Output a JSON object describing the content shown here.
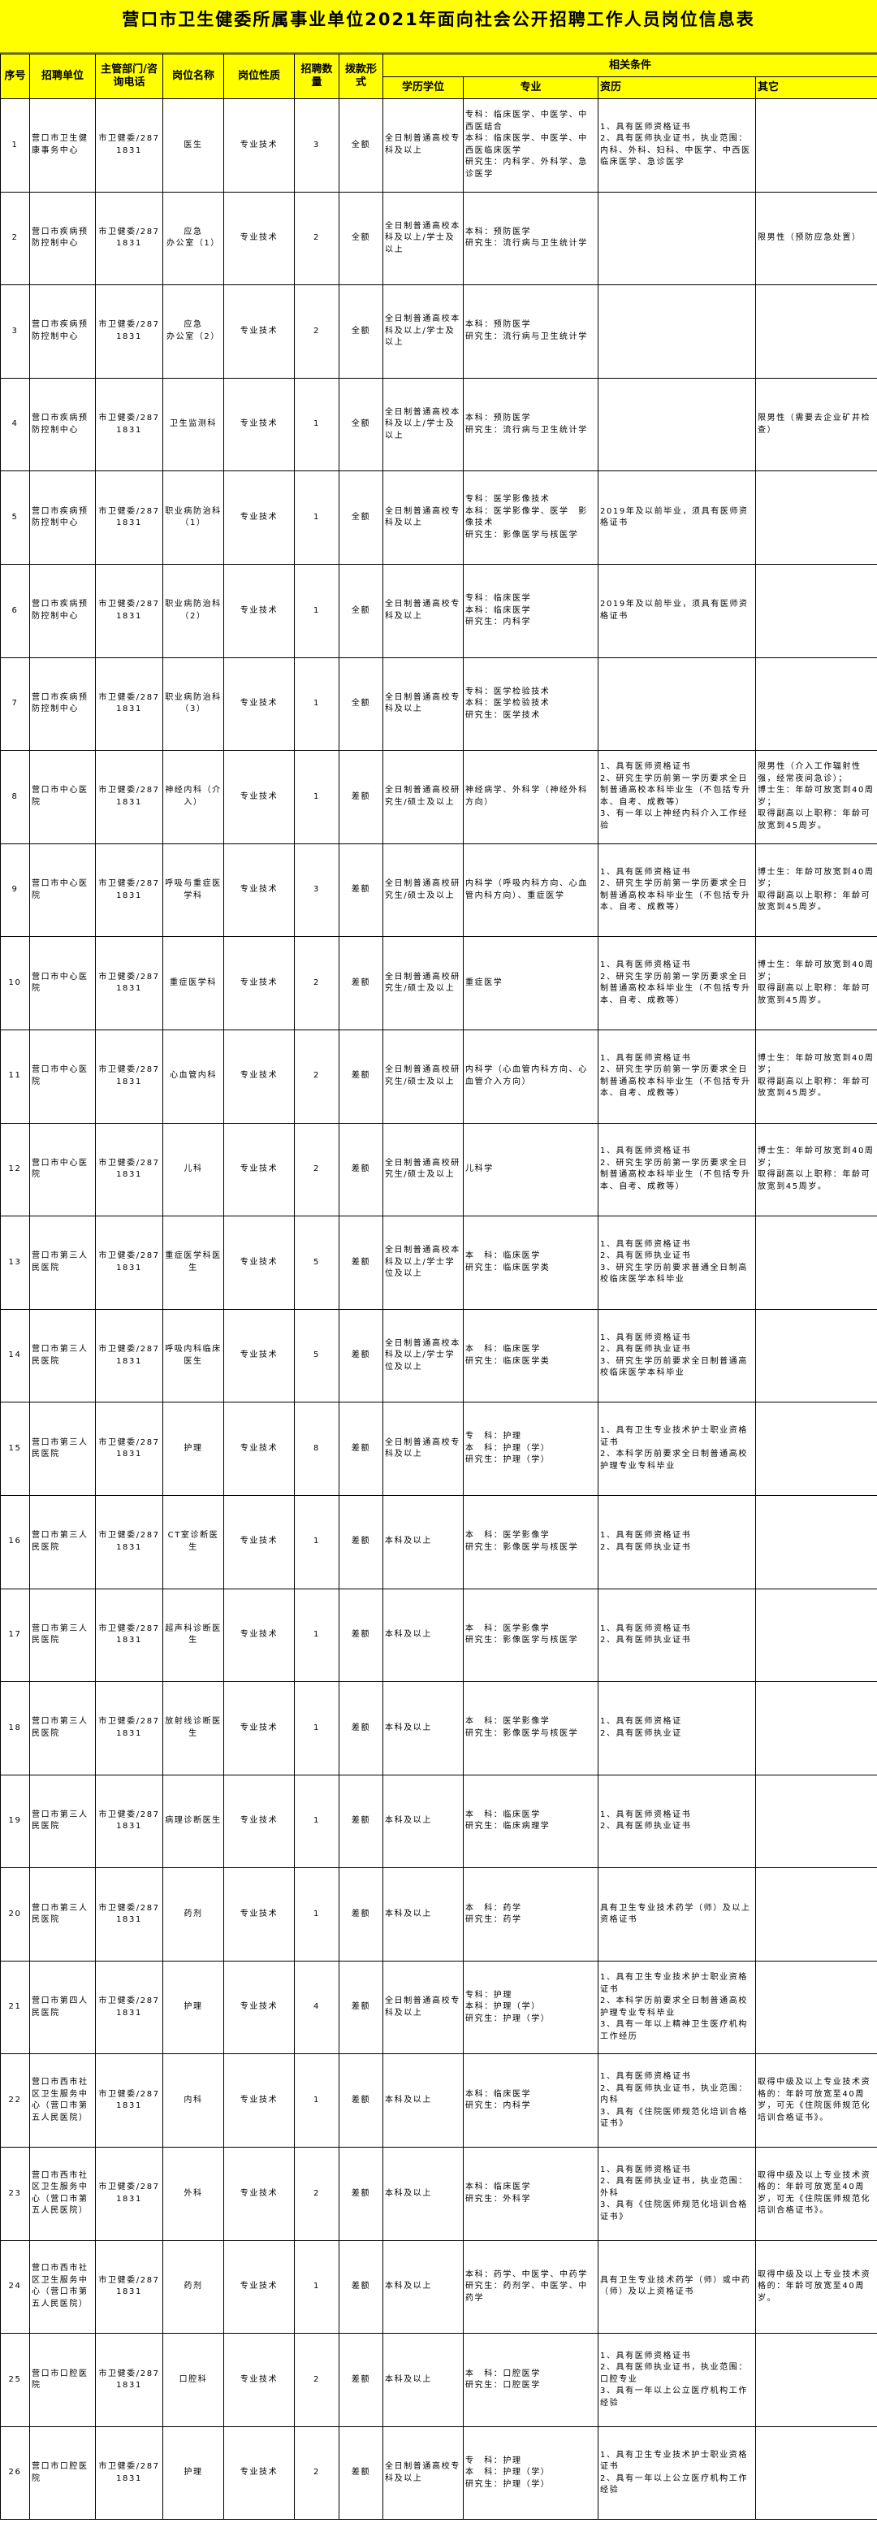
{
  "title": "营口市卫生健委所属事业单位2021年面向社会公开招聘工作人员岗位信息表",
  "headers": {
    "no": "序号",
    "unit": "招聘单位",
    "dept": "主管部门/咨询电话",
    "post": "岗位名称",
    "nature": "岗位性质",
    "count": "招聘数量",
    "funding": "拨款形式",
    "conditions": "相关条件",
    "edu": "学历学位",
    "major": "专业",
    "exp": "资历",
    "other": "其它"
  },
  "colors": {
    "header_bg": "#ffff00",
    "border": "#000000"
  },
  "rows": [
    {
      "no": "1",
      "unit": "营口市卫生健康事务中心",
      "dept": "市卫健委/2871831",
      "post": "医生",
      "nature": "专业技术",
      "count": "3",
      "funding": "全额",
      "edu": "全日制普通高校专科及以上",
      "major": "专科：临床医学、中医学、中西医结合\n本科：临床医学、中医学、中西医临床医学\n研究生：内科学、外科学、急诊医学",
      "exp": "1、具有医师资格证书\n2、具有医师执业证书，执业范围：内科、外科、妇科、中医学、中西医临床医学、急诊医学",
      "other": ""
    },
    {
      "no": "2",
      "unit": "营口市疾病预防控制中心",
      "dept": "市卫健委/2871831",
      "post": "应急\n办公室（1）",
      "nature": "专业技术",
      "count": "2",
      "funding": "全额",
      "edu": "全日制普通高校本科及以上/学士及以上",
      "major": "本科：预防医学\n研究生：流行病与卫生统计学",
      "exp": "",
      "other": "限男性（预防应急处置）"
    },
    {
      "no": "3",
      "unit": "营口市疾病预防控制中心",
      "dept": "市卫健委/2871831",
      "post": "应急\n办公室（2）",
      "nature": "专业技术",
      "count": "2",
      "funding": "全额",
      "edu": "全日制普通高校本科及以上/学士及以上",
      "major": "本科：预防医学\n研究生：流行病与卫生统计学",
      "exp": "",
      "other": ""
    },
    {
      "no": "4",
      "unit": "营口市疾病预防控制中心",
      "dept": "市卫健委/2871831",
      "post": "卫生监测科",
      "nature": "专业技术",
      "count": "1",
      "funding": "全额",
      "edu": "全日制普通高校本科及以上/学士及以上",
      "major": "本科：预防医学\n研究生：流行病与卫生统计学",
      "exp": "",
      "other": "限男性（需要去企业矿井检查）"
    },
    {
      "no": "5",
      "unit": "营口市疾病预防控制中心",
      "dept": "市卫健委/2871831",
      "post": "职业病防治科（1）",
      "nature": "专业技术",
      "count": "1",
      "funding": "全额",
      "edu": "全日制普通高校专科及以上",
      "major": "专科：医学影像技术\n本科：医学影像学、医学　影像技术\n研究生：影像医学与核医学",
      "exp": "2019年及以前毕业，须具有医师资格证书",
      "other": ""
    },
    {
      "no": "6",
      "unit": "营口市疾病预防控制中心",
      "dept": "市卫健委/2871831",
      "post": "职业病防治科（2）",
      "nature": "专业技术",
      "count": "1",
      "funding": "全额",
      "edu": "全日制普通高校专科及以上",
      "major": "专科：临床医学\n本科：临床医学\n研究生：内科学",
      "exp": "2019年及以前毕业，须具有医师资格证书",
      "other": ""
    },
    {
      "no": "7",
      "unit": "营口市疾病预防控制中心",
      "dept": "市卫健委/2871831",
      "post": "职业病防治科（3）",
      "nature": "专业技术",
      "count": "1",
      "funding": "全额",
      "edu": "全日制普通高校专科及以上",
      "major": "专科：医学检验技术\n本科：医学检验技术\n研究生：医学技术",
      "exp": "",
      "other": ""
    },
    {
      "no": "8",
      "unit": "营口市中心医院",
      "dept": "市卫健委/2871831",
      "post": "神经内科（介入）",
      "nature": "专业技术",
      "count": "1",
      "funding": "差额",
      "edu": "全日制普通高校研究生/硕士及以上",
      "major": "神经病学、外科学（神经外科方向）",
      "exp": "1、具有医师资格证书\n2、研究生学历前第一学历要求全日制普通高校本科毕业生（不包括专升本、自考、成教等）\n3、有一年以上神经内科介入工作经验",
      "other": "限男性（介入工作辐射性强，经常夜间急诊）；\n博士生：年龄可放宽到40周岁；\n取得副高以上职称：年龄可放宽到45周岁。"
    },
    {
      "no": "9",
      "unit": "营口市中心医院",
      "dept": "市卫健委/2871831",
      "post": "呼吸与重症医学科",
      "nature": "专业技术",
      "count": "3",
      "funding": "差额",
      "edu": "全日制普通高校研究生/硕士及以上",
      "major": "内科学（呼吸内科方向、心血管内科方向）、重症医学",
      "exp": "1、具有医师资格证书\n2、研究生学历前第一学历要求全日制普通高校本科毕业生（不包括专升本、自考、成教等）",
      "other": "博士生：年龄可放宽到40周岁；\n取得副高以上职称：年龄可放宽到45周岁。"
    },
    {
      "no": "10",
      "unit": "营口市中心医院",
      "dept": "市卫健委/2871831",
      "post": "重症医学科",
      "nature": "专业技术",
      "count": "2",
      "funding": "差额",
      "edu": "全日制普通高校研究生/硕士及以上",
      "major": "重症医学",
      "exp": "1、具有医师资格证书\n2、研究生学历前第一学历要求全日制普通高校本科毕业生（不包括专升本、自考、成教等）",
      "other": "博士生：年龄可放宽到40周岁；\n取得副高以上职称：年龄可放宽到45周岁。"
    },
    {
      "no": "11",
      "unit": "营口市中心医院",
      "dept": "市卫健委/2871831",
      "post": "心血管内科",
      "nature": "专业技术",
      "count": "2",
      "funding": "差额",
      "edu": "全日制普通高校研究生/硕士及以上",
      "major": "内科学（心血管内科方向、心血管介入方向）",
      "exp": "1、具有医师资格证书\n2、研究生学历前第一学历要求全日制普通高校本科毕业生（不包括专升本、自考、成教等）",
      "other": "博士生：年龄可放宽到40周岁；\n取得副高以上职称：年龄可放宽到45周岁。"
    },
    {
      "no": "12",
      "unit": "营口市中心医院",
      "dept": "市卫健委/2871831",
      "post": "儿科",
      "nature": "专业技术",
      "count": "2",
      "funding": "差额",
      "edu": "全日制普通高校研究生/硕士及以上",
      "major": "儿科学",
      "exp": "1、具有医师资格证书\n2、研究生学历前第一学历要求全日制普通高校本科毕业生（不包括专升本、自考、成教等）",
      "other": "博士生：年龄可放宽到40周岁；\n取得副高以上职称：年龄可放宽到45周岁。"
    },
    {
      "no": "13",
      "unit": "营口市第三人民医院",
      "dept": "市卫健委/2871831",
      "post": "重症医学科医生",
      "nature": "专业技术",
      "count": "5",
      "funding": "差额",
      "edu": "全日制普通高校本科及以上/学士学位及以上",
      "major": "本　科：临床医学\n研究生：临床医学类",
      "exp": "1、具有医师资格证书\n2、具有医师执业证书\n3、研究生学历前要求普通全日制高校临床医学本科毕业",
      "other": ""
    },
    {
      "no": "14",
      "unit": "营口市第三人民医院",
      "dept": "市卫健委/2871831",
      "post": "呼吸内科临床医生",
      "nature": "专业技术",
      "count": "5",
      "funding": "差额",
      "edu": "全日制普通高校本科及以上/学士学位及以上",
      "major": "本　科：临床医学\n研究生：临床医学类",
      "exp": "1、具有医师资格证书\n2、具有医师执业证书\n3、研究生学历前要求全日制普通高校临床医学本科毕业",
      "other": ""
    },
    {
      "no": "15",
      "unit": "营口市第三人民医院",
      "dept": "市卫健委/2871831",
      "post": "护理",
      "nature": "专业技术",
      "count": "8",
      "funding": "差额",
      "edu": "全日制普通高校专科及以上",
      "major": "专　科：护理\n本　科：护理（学）\n研究生：护理（学）",
      "exp": "1、具有卫生专业技术护士职业资格证书\n2、本科学历前要求全日制普通高校护理专业专科毕业",
      "other": ""
    },
    {
      "no": "16",
      "unit": "营口市第三人民医院",
      "dept": "市卫健委/2871831",
      "post": "CT室诊断医生",
      "nature": "专业技术",
      "count": "1",
      "funding": "差额",
      "edu": "本科及以上",
      "major": "本　科：医学影像学\n研究生：影像医学与核医学",
      "exp": "1、具有医师资格证书\n2、具有医师执业证书",
      "other": ""
    },
    {
      "no": "17",
      "unit": "营口市第三人民医院",
      "dept": "市卫健委/2871831",
      "post": "超声科诊断医生",
      "nature": "专业技术",
      "count": "1",
      "funding": "差额",
      "edu": "本科及以上",
      "major": "本　科：医学影像学\n研究生：影像医学与核医学",
      "exp": "1、具有医师资格证书\n2、具有医师执业证书",
      "other": ""
    },
    {
      "no": "18",
      "unit": "营口市第三人民医院",
      "dept": "市卫健委/2871831",
      "post": "放射线诊断医生",
      "nature": "专业技术",
      "count": "1",
      "funding": "差额",
      "edu": "本科及以上",
      "major": "本　科：医学影像学\n研究生：影像医学与核医学",
      "exp": "1、具有医师资格证\n2、具有医师执业证",
      "other": ""
    },
    {
      "no": "19",
      "unit": "营口市第三人民医院",
      "dept": "市卫健委/2871831",
      "post": "病理诊断医生",
      "nature": "专业技术",
      "count": "1",
      "funding": "差额",
      "edu": "本科及以上",
      "major": "本　科：临床医学\n研究生：临床病理学",
      "exp": "1、具有医师资格证书\n2、具有医师执业证书",
      "other": ""
    },
    {
      "no": "20",
      "unit": "营口市第三人民医院",
      "dept": "市卫健委/2871831",
      "post": "药剂",
      "nature": "专业技术",
      "count": "1",
      "funding": "差额",
      "edu": "本科及以上",
      "major": "本　科：药学\n研究生：药学",
      "exp": "具有卫生专业技术药学（师）及以上资格证书",
      "other": ""
    },
    {
      "no": "21",
      "unit": "营口市第四人民医院",
      "dept": "市卫健委/2871831",
      "post": "护理",
      "nature": "专业技术",
      "count": "4",
      "funding": "差额",
      "edu": "全日制普通高校专科及以上",
      "major": "专科：护理\n本科：护理（学）\n研究生：护理（学）",
      "exp": "1、具有卫生专业技术护士职业资格证书\n2、本科学历前要求全日制普通高校护理专业专科毕业\n3、具有一年以上精神卫生医疗机构工作经历",
      "other": ""
    },
    {
      "no": "22",
      "unit": "营口市西市社区卫生服务中心（营口市第五人民医院）",
      "dept": "市卫健委/2871831",
      "post": "内科",
      "nature": "专业技术",
      "count": "1",
      "funding": "差额",
      "edu": "本科及以上",
      "major": "本科：临床医学\n研究生：内科学",
      "exp": "1、具有医师资格证书\n2、具有医师执业证书，执业范围：内科\n3、具有《住院医师规范化培训合格证书》",
      "other": "取得中级及以上专业技术资格的：年龄可放宽至40周岁，可无《住院医师规范化培训合格证书》。"
    },
    {
      "no": "23",
      "unit": "营口市西市社区卫生服务中心（营口市第五人民医院）",
      "dept": "市卫健委/2871831",
      "post": "外科",
      "nature": "专业技术",
      "count": "2",
      "funding": "差额",
      "edu": "本科及以上",
      "major": "本科：临床医学\n研究生：外科学",
      "exp": "1、具有医师资格证书\n2、具有医师执业证书，执业范围：外科\n3、具有《住院医师规范化培训合格证书》",
      "other": "取得中级及以上专业技术资格的：年龄可放宽至40周岁，可无《住院医师规范化培训合格证书》。"
    },
    {
      "no": "24",
      "unit": "营口市西市社区卫生服务中心（营口市第五人民医院）",
      "dept": "市卫健委/2871831",
      "post": "药剂",
      "nature": "专业技术",
      "count": "1",
      "funding": "差额",
      "edu": "本科及以上",
      "major": "本科：药学、中医学、中药学\n研究生：药剂学、中医学、中药学",
      "exp": "具有卫生专业技术药学（师）或中药（师）及以上资格证书",
      "other": "取得中级及以上专业技术资格的：年龄可放宽至40周岁。"
    },
    {
      "no": "25",
      "unit": "营口市口腔医院",
      "dept": "市卫健委/2871831",
      "post": "口腔科",
      "nature": "专业技术",
      "count": "2",
      "funding": "差额",
      "edu": "本科及以上",
      "major": "本　科：口腔医学\n研究生：口腔医学",
      "exp": "1、具有医师资格证书\n2、具有医师执业证书，执业范围：口腔专业\n3、具有一年以上公立医疗机构工作经验",
      "other": ""
    },
    {
      "no": "26",
      "unit": "营口市口腔医院",
      "dept": "市卫健委/2871831",
      "post": "护理",
      "nature": "专业技术",
      "count": "2",
      "funding": "差额",
      "edu": "全日制普通高校专科及以上",
      "major": "专　科：护理\n本　科：护理（学）\n研究生：护理（学）",
      "exp": "1、具有卫生专业技术护士职业资格证书\n2、具有一年以上公立医疗机构工作经验",
      "other": ""
    }
  ]
}
